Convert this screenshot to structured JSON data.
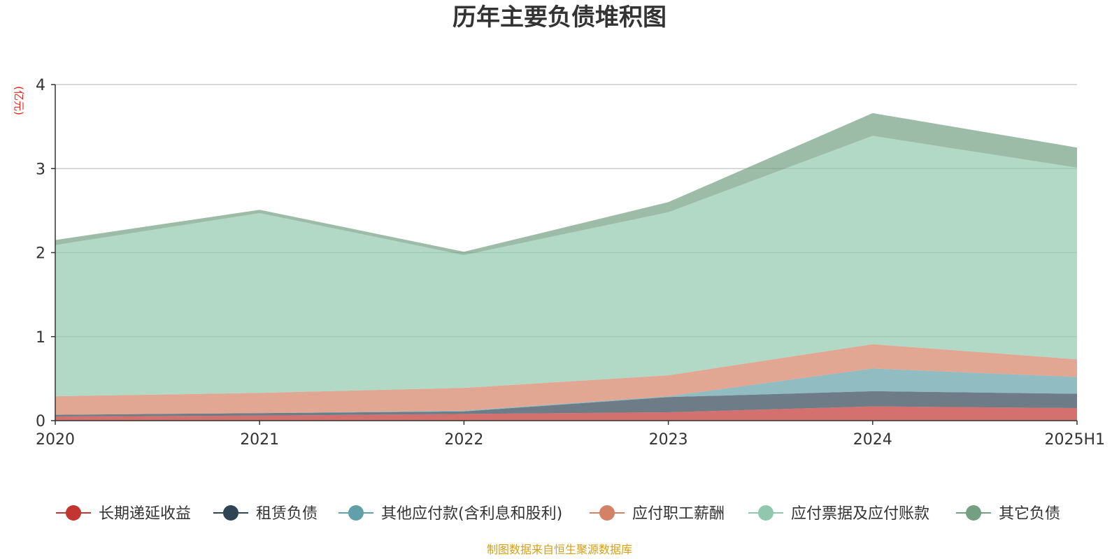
{
  "chart_data": {
    "type": "area",
    "stacked": true,
    "title": "历年主要负债堆积图",
    "ylabel": "(亿元)",
    "x": [
      "2020",
      "2021",
      "2022",
      "2023",
      "2024",
      "2025H1"
    ],
    "ylim": [
      0,
      4
    ],
    "yticks": [
      0,
      1,
      2,
      3,
      4
    ],
    "grid": true,
    "legend_position": "bottom",
    "series": [
      {
        "name": "长期递延收益",
        "color": "#c23531",
        "values": [
          0.05,
          0.06,
          0.08,
          0.1,
          0.17,
          0.15
        ]
      },
      {
        "name": "租赁负债",
        "color": "#2f4554",
        "values": [
          0.02,
          0.03,
          0.03,
          0.18,
          0.18,
          0.17
        ]
      },
      {
        "name": "其他应付款(含利息和股利)",
        "color": "#61a0a8",
        "values": [
          0.0,
          0.0,
          0.01,
          0.01,
          0.27,
          0.2
        ]
      },
      {
        "name": "应付职工薪酬",
        "color": "#d48265",
        "values": [
          0.22,
          0.24,
          0.27,
          0.25,
          0.29,
          0.21
        ]
      },
      {
        "name": "应付票据及应付账款",
        "color": "#91c7ae",
        "values": [
          1.8,
          2.14,
          1.58,
          1.94,
          2.48,
          2.28
        ]
      },
      {
        "name": "其它负债",
        "color": "#749f83",
        "values": [
          0.06,
          0.04,
          0.04,
          0.12,
          0.27,
          0.24
        ]
      }
    ],
    "source": "制图数据来自恒生聚源数据库"
  }
}
